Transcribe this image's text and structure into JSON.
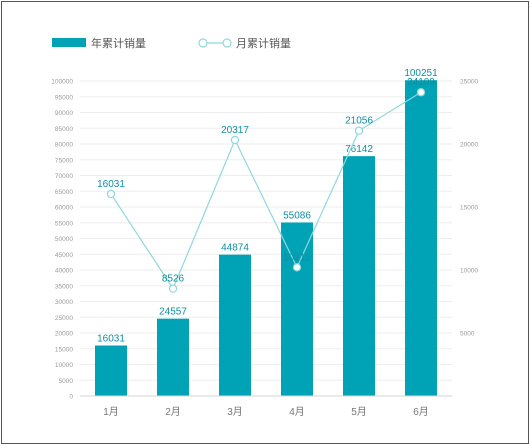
{
  "chart_data": {
    "type": "bar",
    "title": "",
    "categories": [
      "1月",
      "2月",
      "3月",
      "4月",
      "5月",
      "6月"
    ],
    "series": [
      {
        "name": "年累计销量",
        "type": "bar",
        "axis": "left",
        "color": "#00a2b5",
        "values": [
          16031,
          24557,
          44874,
          55086,
          76142,
          100251
        ]
      },
      {
        "name": "月累计销量",
        "type": "line",
        "axis": "right",
        "color": "#8fd8de",
        "values": [
          16031,
          8526,
          20317,
          10212,
          21056,
          24109
        ]
      }
    ],
    "y_left": {
      "min": 0,
      "max": 100000,
      "step": 5000,
      "ticks": [
        "0",
        "5000",
        "10000",
        "15000",
        "20000",
        "25000",
        "30000",
        "35000",
        "40000",
        "45000",
        "50000",
        "55000",
        "60000",
        "65000",
        "70000",
        "75000",
        "80000",
        "85000",
        "90000",
        "95000",
        "100000"
      ]
    },
    "y_right": {
      "min": 0,
      "max": 25000,
      "ticks": [
        "5000",
        "10000",
        "15000",
        "20000",
        "25000"
      ]
    },
    "legend_position": "top-left",
    "grid": true
  }
}
